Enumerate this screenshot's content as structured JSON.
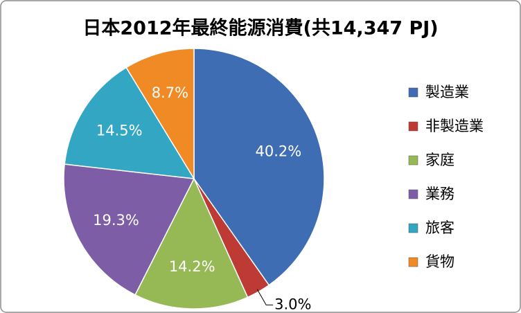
{
  "chart_data": {
    "type": "pie",
    "title": "日本2012年最終能源消費(共14,347 PJ)",
    "categories": [
      "製造業",
      "非製造業",
      "家庭",
      "業務",
      "旅客",
      "貨物"
    ],
    "values": [
      40.2,
      3.0,
      14.2,
      19.3,
      14.5,
      8.7
    ],
    "value_labels": [
      "40.2%",
      "3.0%",
      "14.2%",
      "19.3%",
      "14.5%",
      "8.7%"
    ],
    "colors": [
      "#3e6db3",
      "#be3a35",
      "#97b955",
      "#7d5ea6",
      "#33a6c3",
      "#f08a24"
    ]
  }
}
